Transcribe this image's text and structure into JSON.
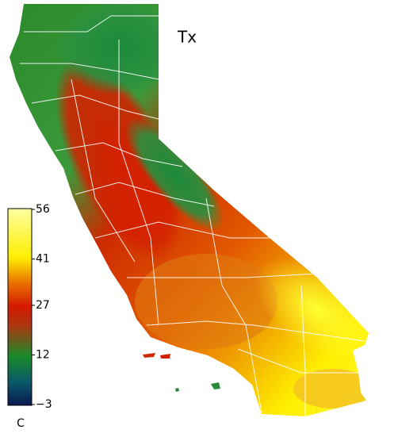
{
  "map": {
    "title": "Tx"
  },
  "colorbar": {
    "label": "C",
    "range": [
      -3,
      56
    ],
    "ticks": [
      {
        "value": -3,
        "label": "−3"
      },
      12,
      27,
      41,
      56
    ]
  }
}
